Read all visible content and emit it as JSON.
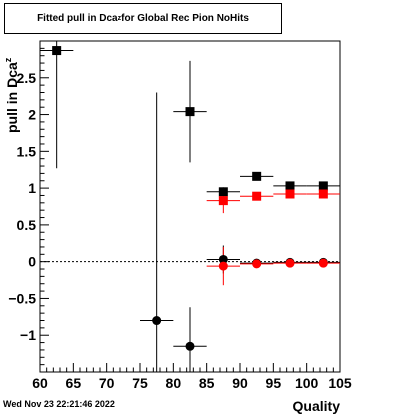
{
  "title_parts": {
    "before": "Fitted pull in Dca",
    "subscript": "z",
    "after": " for Global Rec Pion NoHits"
  },
  "footer_date": "Wed Nov 23 22:21:46 2022",
  "chart_data": {
    "type": "scatter",
    "title": "Fitted pull in Dca_z for Global Rec Pion NoHits",
    "xlabel": "Quality",
    "ylabel": "pull in Dca_z",
    "xlim": [
      60,
      105
    ],
    "ylim": [
      -1.5,
      3.0
    ],
    "x_ticks": [
      60,
      65,
      70,
      75,
      80,
      85,
      90,
      95,
      100,
      105
    ],
    "x_tick_labels": [
      "60",
      "65",
      "70",
      "75",
      "80",
      "85",
      "90",
      "95",
      "100",
      "105"
    ],
    "y_ticks": [
      -1,
      -0.5,
      0,
      0.5,
      1,
      1.5,
      2,
      2.5
    ],
    "y_tick_labels": [
      "−1",
      "−0.5",
      "0",
      "0.5",
      "1",
      "1.5",
      "2",
      "2.5"
    ],
    "colors": {
      "black": "#000000",
      "red": "#ff0000"
    },
    "series": [
      {
        "marker": "square",
        "color": "#000000",
        "points": [
          {
            "x": 62.5,
            "y": 2.87,
            "xerr": 2.5,
            "yerr": 1.6
          },
          {
            "x": 82.5,
            "y": 2.04,
            "xerr": 2.5,
            "yerr": 0.69
          },
          {
            "x": 87.5,
            "y": 0.95,
            "xerr": 2.5,
            "yerr": 0.06
          },
          {
            "x": 92.5,
            "y": 1.16,
            "xerr": 2.5,
            "yerr": 0.03
          },
          {
            "x": 97.5,
            "y": 1.03,
            "xerr": 2.5,
            "yerr": 0.02
          },
          {
            "x": 102.5,
            "y": 1.03,
            "xerr": 2.5,
            "yerr": 0.02
          }
        ]
      },
      {
        "marker": "circle",
        "color": "#000000",
        "points": [
          {
            "x": 77.5,
            "y": -0.8,
            "xerr": 2.5,
            "yerr": 3.1
          },
          {
            "x": 82.5,
            "y": -1.15,
            "xerr": 2.5,
            "yerr": 0.53
          },
          {
            "x": 87.5,
            "y": 0.03,
            "xerr": 2.5,
            "yerr": 0.19
          },
          {
            "x": 92.5,
            "y": -0.02,
            "xerr": 2.5,
            "yerr": 0.03
          },
          {
            "x": 97.5,
            "y": -0.01,
            "xerr": 2.5,
            "yerr": 0.02
          },
          {
            "x": 102.5,
            "y": -0.01,
            "xerr": 2.5,
            "yerr": 0.02
          }
        ]
      },
      {
        "marker": "square",
        "color": "#ff0000",
        "points": [
          {
            "x": 87.5,
            "y": 0.83,
            "xerr": 2.5,
            "yerr": 0.17
          },
          {
            "x": 92.5,
            "y": 0.89,
            "xerr": 2.5,
            "yerr": 0.03
          },
          {
            "x": 97.5,
            "y": 0.92,
            "xerr": 2.5,
            "yerr": 0.02
          },
          {
            "x": 102.5,
            "y": 0.92,
            "xerr": 2.5,
            "yerr": 0.02
          }
        ]
      },
      {
        "marker": "circle",
        "color": "#ff0000",
        "points": [
          {
            "x": 87.5,
            "y": -0.06,
            "xerr": 2.5,
            "yerr": 0.26
          },
          {
            "x": 92.5,
            "y": -0.03,
            "xerr": 2.5,
            "yerr": 0.03
          },
          {
            "x": 97.5,
            "y": -0.02,
            "xerr": 2.5,
            "yerr": 0.02
          },
          {
            "x": 102.5,
            "y": -0.02,
            "xerr": 2.5,
            "yerr": 0.02
          }
        ]
      }
    ]
  }
}
